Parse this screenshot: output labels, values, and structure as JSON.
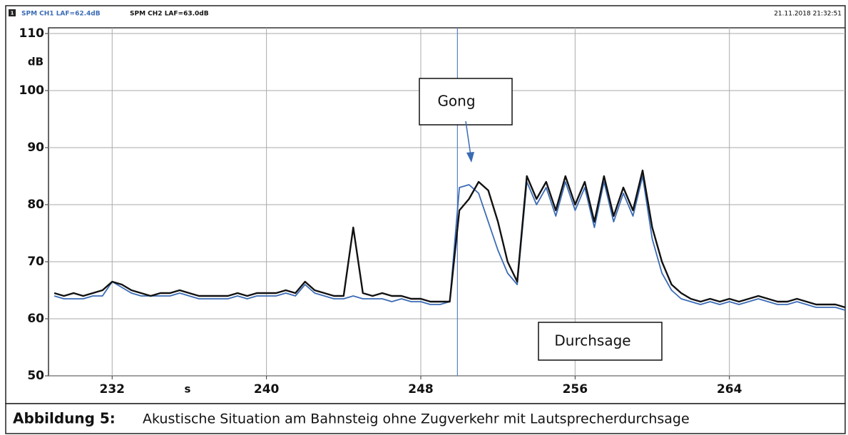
{
  "chart_data": {
    "type": "line",
    "window_number": "1",
    "timestamp": "21.11.2018 21:32:51",
    "x_label": "s",
    "y_label": "dB",
    "xlim": [
      228.7,
      270
    ],
    "ylim": [
      50,
      111
    ],
    "xticks": [
      232,
      240,
      248,
      256,
      264
    ],
    "yticks": [
      50,
      60,
      70,
      80,
      90,
      100,
      110
    ],
    "grid": true,
    "cursor": 249.9,
    "cursor_color": "#5a7fc8",
    "annotations": [
      {
        "text": "Gong"
      },
      {
        "text": "Durchsage"
      }
    ],
    "x": [
      229,
      229.5,
      230,
      230.5,
      231,
      231.5,
      232,
      232.5,
      233,
      233.5,
      234,
      234.5,
      235,
      235.5,
      236,
      236.5,
      237,
      237.5,
      238,
      238.5,
      239,
      239.5,
      240,
      240.5,
      241,
      241.5,
      242,
      242.5,
      243,
      243.5,
      244,
      244.5,
      245,
      245.5,
      246,
      246.5,
      247,
      247.5,
      248,
      248.5,
      249,
      249.5,
      250,
      250.5,
      251,
      251.5,
      252,
      252.5,
      253,
      253.5,
      254,
      254.5,
      255,
      255.5,
      256,
      256.5,
      257,
      257.5,
      258,
      258.5,
      259,
      259.5,
      260,
      260.5,
      261,
      261.5,
      262,
      262.5,
      263,
      263.5,
      264,
      264.5,
      265,
      265.5,
      266,
      266.5,
      267,
      267.5,
      268,
      268.5,
      269,
      269.5,
      270
    ],
    "series": [
      {
        "name": "SPM CH1 LAF=62.4dB",
        "color": "#3b6bb5",
        "values": [
          64,
          63.5,
          63.5,
          63.5,
          64,
          64,
          66.5,
          65.5,
          64.5,
          64,
          64,
          64,
          64,
          64.5,
          64,
          63.5,
          63.5,
          63.5,
          63.5,
          64,
          63.5,
          64,
          64,
          64,
          64.5,
          64,
          66,
          64.5,
          64,
          63.5,
          63.5,
          64,
          63.5,
          63.5,
          63.5,
          63,
          63.5,
          63,
          63,
          62.5,
          62.5,
          63,
          83,
          83.5,
          82,
          77,
          72,
          68,
          66,
          84,
          80,
          83,
          78,
          84,
          79,
          83,
          76,
          84,
          77,
          82,
          78,
          85,
          74,
          68,
          65,
          63.5,
          63,
          62.5,
          63,
          62.5,
          63,
          62.5,
          63,
          63.5,
          63,
          62.5,
          62.5,
          63,
          62.5,
          62,
          62,
          62,
          61.5
        ]
      },
      {
        "name": "SPM CH2 LAF=63.0dB",
        "color": "#111111",
        "values": [
          64.5,
          64,
          64.5,
          64,
          64.5,
          65,
          66.5,
          66,
          65,
          64.5,
          64,
          64.5,
          64.5,
          65,
          64.5,
          64,
          64,
          64,
          64,
          64.5,
          64,
          64.5,
          64.5,
          64.5,
          65,
          64.5,
          66.5,
          65,
          64.5,
          64,
          64,
          76,
          64.5,
          64,
          64.5,
          64,
          64,
          63.5,
          63.5,
          63,
          63,
          63,
          79,
          81,
          84,
          82.5,
          77,
          70,
          66.5,
          85,
          81,
          84,
          79,
          85,
          80,
          84,
          77,
          85,
          78,
          83,
          79,
          86,
          76,
          70,
          66,
          64.5,
          63.5,
          63,
          63.5,
          63,
          63.5,
          63,
          63.5,
          64,
          63.5,
          63,
          63,
          63.5,
          63,
          62.5,
          62.5,
          62.5,
          62
        ]
      }
    ]
  },
  "caption_label": "Abbildung 5:",
  "caption": "Akustische Situation am Bahnsteig ohne Zugverkehr mit Lautsprecherdurchsage"
}
